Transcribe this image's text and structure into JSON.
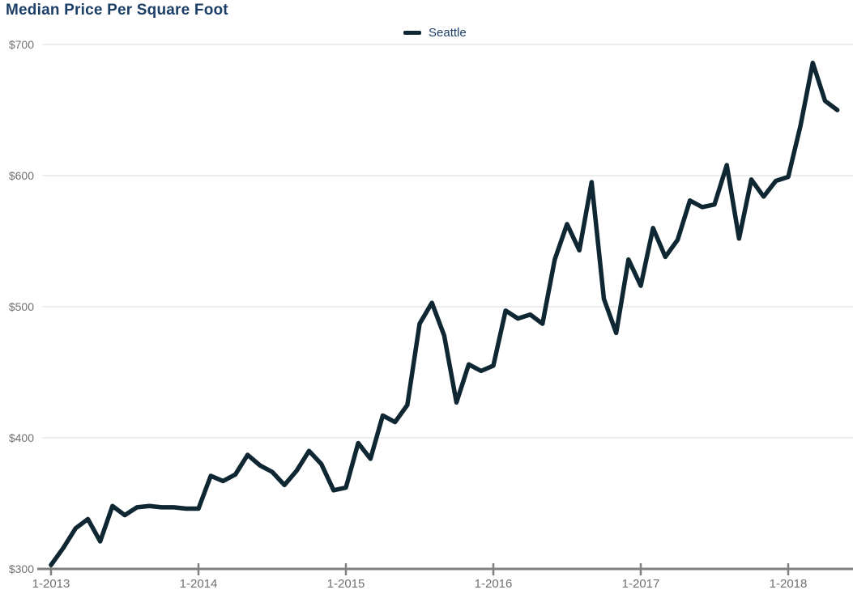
{
  "page": {
    "title": "Median Price Per Square Foot"
  },
  "legend": {
    "items": [
      {
        "label": "Seattle",
        "swatch_color": "#0f2733"
      }
    ]
  },
  "colors": {
    "line": "#0f2733",
    "title_text": "#1c3f68",
    "legend_text": "#1c3f68",
    "axis_text": "#707070",
    "gridline": "#d9d9d9",
    "axis_line": "#808080",
    "background": "#ffffff"
  },
  "chart_data": {
    "type": "line",
    "title": "Median Price Per Square Foot",
    "xlabel": "",
    "ylabel": "",
    "ylim": [
      300,
      700
    ],
    "yticks": [
      300,
      400,
      500,
      600,
      700
    ],
    "ytick_labels": [
      "$300",
      "$400",
      "$500",
      "$600",
      "$700"
    ],
    "grid": "horizontal",
    "legend_position": "top-center",
    "x_tick_indices": [
      0,
      12,
      24,
      36,
      48,
      60
    ],
    "x_tick_labels": [
      "1-2013",
      "1-2014",
      "1-2015",
      "1-2016",
      "1-2017",
      "1-2018"
    ],
    "x": [
      "1-2013",
      "2-2013",
      "3-2013",
      "4-2013",
      "5-2013",
      "6-2013",
      "7-2013",
      "8-2013",
      "9-2013",
      "10-2013",
      "11-2013",
      "12-2013",
      "1-2014",
      "2-2014",
      "3-2014",
      "4-2014",
      "5-2014",
      "6-2014",
      "7-2014",
      "8-2014",
      "9-2014",
      "10-2014",
      "11-2014",
      "12-2014",
      "1-2015",
      "2-2015",
      "3-2015",
      "4-2015",
      "5-2015",
      "6-2015",
      "7-2015",
      "8-2015",
      "9-2015",
      "10-2015",
      "11-2015",
      "12-2015",
      "1-2016",
      "2-2016",
      "3-2016",
      "4-2016",
      "5-2016",
      "6-2016",
      "7-2016",
      "8-2016",
      "9-2016",
      "10-2016",
      "11-2016",
      "12-2016",
      "1-2017",
      "2-2017",
      "3-2017",
      "4-2017",
      "5-2017",
      "6-2017",
      "7-2017",
      "8-2017",
      "9-2017",
      "10-2017",
      "11-2017",
      "12-2017",
      "1-2018",
      "2-2018",
      "3-2018",
      "4-2018",
      "5-2018"
    ],
    "series": [
      {
        "name": "Seattle",
        "color": "#0f2733",
        "values": [
          303,
          316,
          331,
          338,
          321,
          348,
          341,
          347,
          348,
          347,
          347,
          346,
          346,
          371,
          367,
          372,
          387,
          379,
          374,
          364,
          375,
          390,
          380,
          360,
          362,
          396,
          384,
          417,
          412,
          425,
          487,
          503,
          478,
          427,
          456,
          451,
          455,
          497,
          491,
          494,
          487,
          536,
          563,
          543,
          595,
          506,
          480,
          536,
          516,
          560,
          538,
          551,
          581,
          576,
          578,
          608,
          552,
          597,
          584,
          596,
          599,
          638,
          686,
          657,
          650
        ]
      }
    ]
  }
}
